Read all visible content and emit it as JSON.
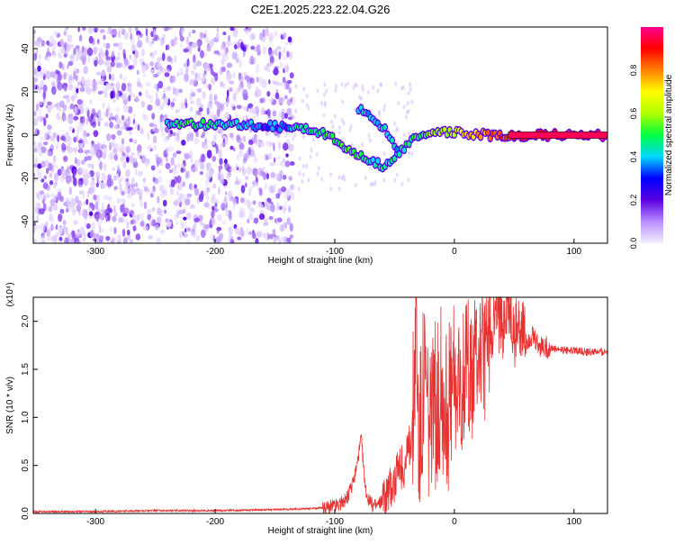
{
  "page": {
    "title": "C2E1.2025.223.22.04.G26"
  },
  "chart_data": [
    {
      "type": "heatmap",
      "title": "C2E1.2025.223.22.04.G26",
      "xlabel": "Height of straight line (km)",
      "ylabel": "Frequency (Hz)",
      "xlim": [
        -352,
        128
      ],
      "ylim": [
        -50,
        50
      ],
      "xticks": [
        -300,
        -200,
        -100,
        0,
        100
      ],
      "yticks": [
        -40,
        -20,
        0,
        20,
        40
      ],
      "colorbar": {
        "label": "Normalized spectral amplitude",
        "range": [
          0,
          1
        ],
        "ticks": [
          0.0,
          0.2,
          0.4,
          0.6,
          0.8
        ],
        "tick_labels": [
          "0.0",
          "0.2",
          "0.4",
          "0.6",
          "0.8"
        ],
        "colors": [
          "#f4f0ff",
          "#b88cff",
          "#5a00e0",
          "#0000ff",
          "#00d8ff",
          "#00ff40",
          "#b0ff00",
          "#ffff00",
          "#ff8000",
          "#ff0000",
          "#ff0090"
        ]
      },
      "signal_track": [
        {
          "x": -240,
          "y": 5,
          "amp": 0.45
        },
        {
          "x": -220,
          "y": 5,
          "amp": 0.5
        },
        {
          "x": -200,
          "y": 5,
          "amp": 0.45
        },
        {
          "x": -180,
          "y": 5,
          "amp": 0.4
        },
        {
          "x": -160,
          "y": 4,
          "amp": 0.35
        },
        {
          "x": -140,
          "y": 4,
          "amp": 0.35
        },
        {
          "x": -130,
          "y": 4,
          "amp": 0.45
        },
        {
          "x": -120,
          "y": 3,
          "amp": 0.45
        },
        {
          "x": -110,
          "y": 1,
          "amp": 0.5
        },
        {
          "x": -100,
          "y": -2,
          "amp": 0.5
        },
        {
          "x": -90,
          "y": -6,
          "amp": 0.5
        },
        {
          "x": -80,
          "y": -9,
          "amp": 0.5
        },
        {
          "x": -70,
          "y": -12,
          "amp": 0.45
        },
        {
          "x": -60,
          "y": -14,
          "amp": 0.45
        },
        {
          "x": -50,
          "y": -10,
          "amp": 0.45
        },
        {
          "x": -40,
          "y": -5,
          "amp": 0.45
        },
        {
          "x": -30,
          "y": 0,
          "amp": 0.5
        },
        {
          "x": -20,
          "y": 1,
          "amp": 0.55
        },
        {
          "x": -10,
          "y": 1,
          "amp": 0.6
        },
        {
          "x": 0,
          "y": 1,
          "amp": 0.65
        },
        {
          "x": 10,
          "y": 0.5,
          "amp": 0.7
        },
        {
          "x": 20,
          "y": 0.5,
          "amp": 0.75
        },
        {
          "x": 30,
          "y": 0,
          "amp": 0.8
        },
        {
          "x": 40,
          "y": 0,
          "amp": 0.85
        },
        {
          "x": 60,
          "y": 0,
          "amp": 0.9
        },
        {
          "x": 80,
          "y": 0,
          "amp": 0.92
        },
        {
          "x": 100,
          "y": 0,
          "amp": 0.95
        },
        {
          "x": 128,
          "y": 0,
          "amp": 0.97
        }
      ],
      "secondary_track": [
        {
          "x": -80,
          "y": 12,
          "amp": 0.35
        },
        {
          "x": -72,
          "y": 10,
          "amp": 0.4
        },
        {
          "x": -64,
          "y": 6,
          "amp": 0.4
        },
        {
          "x": -56,
          "y": 1,
          "amp": 0.4
        },
        {
          "x": -50,
          "y": -4,
          "amp": 0.4
        },
        {
          "x": -44,
          "y": -10,
          "amp": 0.4
        }
      ],
      "noise_region": {
        "x_from": -352,
        "x_to": -135,
        "y_from": -50,
        "y_to": 50,
        "density": "high"
      }
    },
    {
      "type": "line",
      "xlabel": "Height of straight line (km)",
      "ylabel": "SNR (10 * v/v)",
      "y_multiplier": "(x10⁴)",
      "xlim": [
        -352,
        128
      ],
      "ylim": [
        0,
        2.25
      ],
      "xticks": [
        -300,
        -200,
        -100,
        0,
        100
      ],
      "yticks": [
        0.0,
        0.5,
        1.0,
        1.5,
        2.0
      ],
      "ytick_labels": [
        "0.0",
        "0.5",
        "1.0",
        "1.5",
        "2.0"
      ],
      "color": "#e83232",
      "series": [
        {
          "x": [
            -352,
            -300,
            -250,
            -200,
            -150,
            -120,
            -110,
            -100,
            -95,
            -90,
            -85,
            -80,
            -78,
            -76,
            -75,
            -72,
            -70,
            -65,
            -60,
            -55,
            -50,
            -45,
            -40,
            -35,
            -32,
            -30,
            -28,
            -25,
            -20,
            -15,
            -10,
            -5,
            0,
            5,
            10,
            15,
            20,
            25,
            30,
            35,
            40,
            45,
            50,
            55,
            60,
            65,
            70,
            80,
            90,
            100,
            110,
            120,
            128
          ],
          "y": [
            0.02,
            0.02,
            0.03,
            0.03,
            0.04,
            0.05,
            0.06,
            0.08,
            0.1,
            0.15,
            0.3,
            0.6,
            0.8,
            0.5,
            0.3,
            0.15,
            0.1,
            0.08,
            0.15,
            0.25,
            0.35,
            0.45,
            0.55,
            0.9,
            2.2,
            0.8,
            1.0,
            1.5,
            0.8,
            1.2,
            1.3,
            1.1,
            1.4,
            1.2,
            1.6,
            1.4,
            1.8,
            1.6,
            1.9,
            2.1,
            1.9,
            2.2,
            1.85,
            2.0,
            1.8,
            1.85,
            1.75,
            1.72,
            1.7,
            1.7,
            1.68,
            1.68,
            1.68
          ],
          "noise_band": [
            {
              "x_from": -110,
              "x_to": -60,
              "amp": 0.08
            },
            {
              "x_from": -60,
              "x_to": -35,
              "amp": 0.25
            },
            {
              "x_from": -35,
              "x_to": 0,
              "amp": 0.9
            },
            {
              "x_from": 0,
              "x_to": 30,
              "amp": 0.7
            },
            {
              "x_from": 30,
              "x_to": 60,
              "amp": 0.35
            },
            {
              "x_from": 60,
              "x_to": 80,
              "amp": 0.12
            },
            {
              "x_from": 80,
              "x_to": 128,
              "amp": 0.04
            }
          ]
        }
      ]
    }
  ]
}
